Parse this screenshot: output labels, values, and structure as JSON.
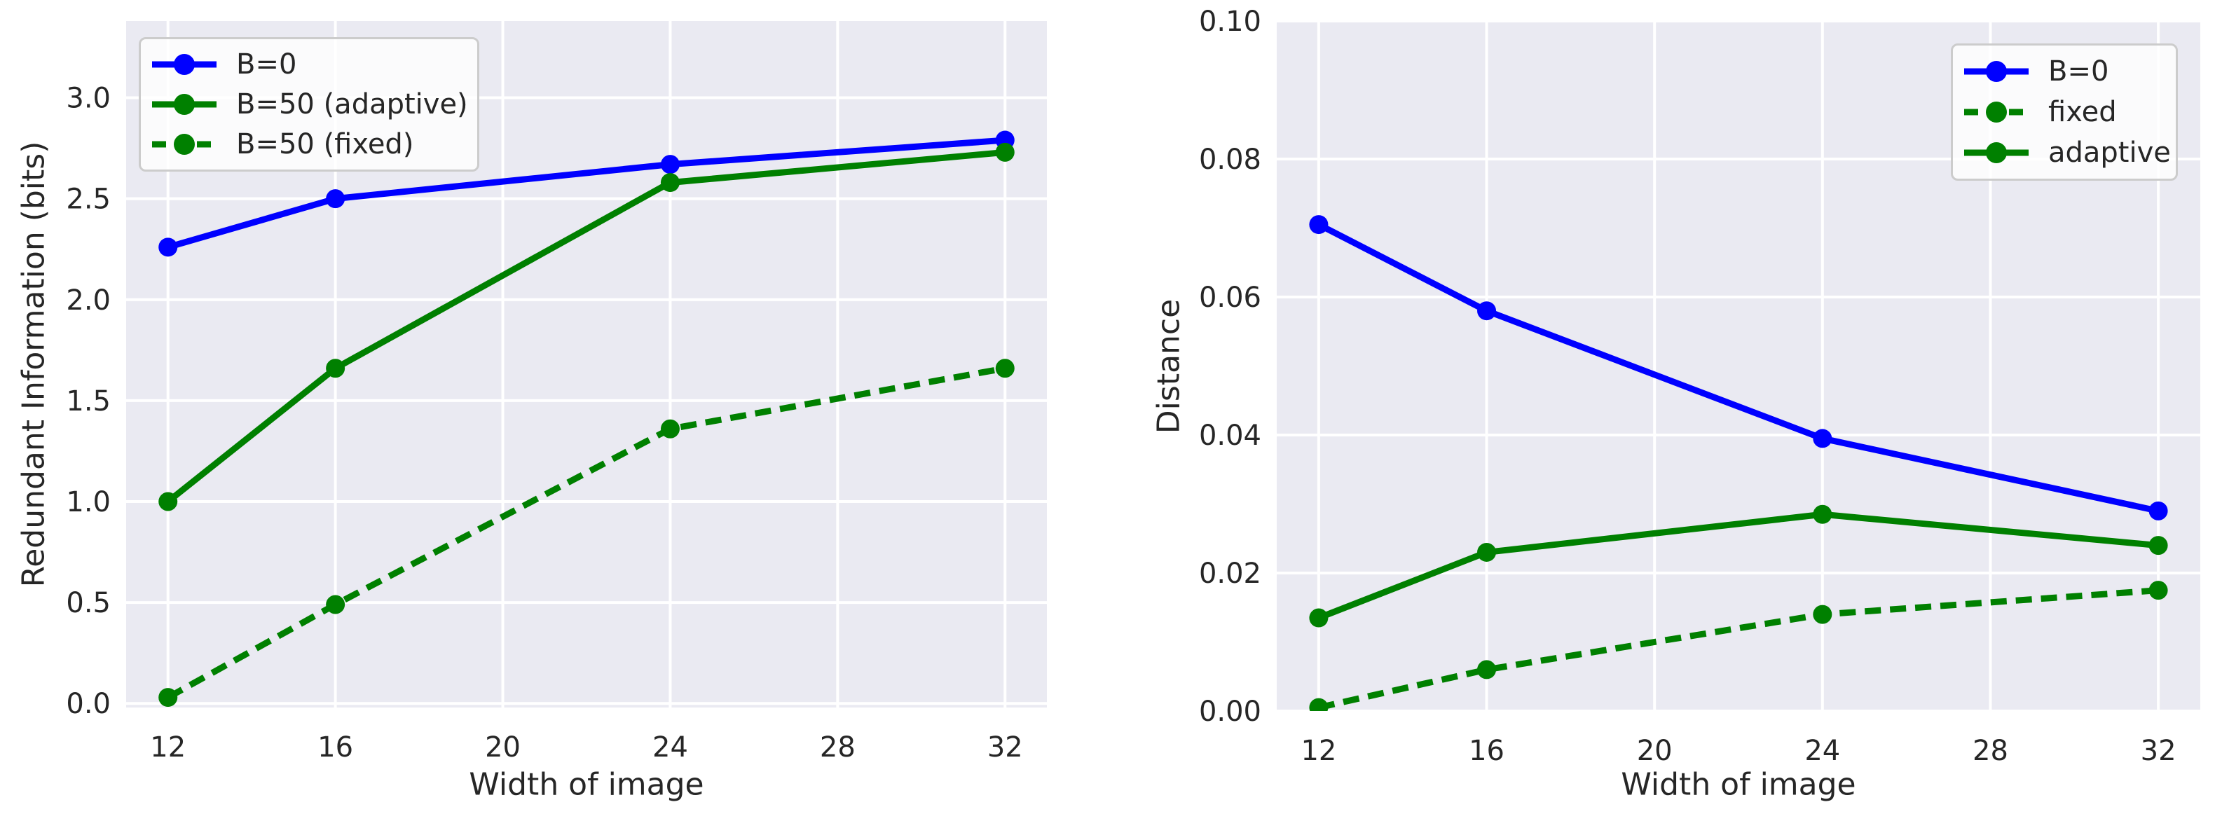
{
  "styles": {
    "plot_bg": "#eaeaf2",
    "grid_color": "#ffffff",
    "text_color": "#262626",
    "blue": "#0000ff",
    "green": "#008000",
    "legend_border": "#cccccc"
  },
  "chart_data": [
    {
      "type": "line",
      "xlabel": "Width of image",
      "ylabel": "Redundant Information (bits)",
      "x": [
        12,
        16,
        24,
        32
      ],
      "xticks": [
        12,
        16,
        20,
        24,
        28,
        32
      ],
      "xtick_labels": [
        "12",
        "16",
        "20",
        "24",
        "28",
        "32"
      ],
      "yticks": [
        0.0,
        0.5,
        1.0,
        1.5,
        2.0,
        2.5,
        3.0
      ],
      "ytick_labels": [
        "0.0",
        "0.5",
        "1.0",
        "1.5",
        "2.0",
        "2.5",
        "3.0"
      ],
      "xlim": [
        11,
        33
      ],
      "ylim": [
        -0.02,
        3.38
      ],
      "grid": true,
      "legend_position": "upper left",
      "series": [
        {
          "name": "B=0",
          "color": "#0000ff",
          "linestyle": "solid",
          "values": [
            2.26,
            2.5,
            2.67,
            2.79
          ]
        },
        {
          "name": "B=50 (adaptive)",
          "color": "#008000",
          "linestyle": "solid",
          "values": [
            1.0,
            1.66,
            2.58,
            2.73
          ]
        },
        {
          "name": "B=50 (fixed)",
          "color": "#008000",
          "linestyle": "dashed",
          "values": [
            0.03,
            0.49,
            1.36,
            1.66
          ]
        }
      ]
    },
    {
      "type": "line",
      "xlabel": "Width of image",
      "ylabel": "Distance",
      "x": [
        12,
        16,
        24,
        32
      ],
      "xticks": [
        12,
        16,
        20,
        24,
        28,
        32
      ],
      "xtick_labels": [
        "12",
        "16",
        "20",
        "24",
        "28",
        "32"
      ],
      "yticks": [
        0.0,
        0.02,
        0.04,
        0.06,
        0.08,
        0.1
      ],
      "ytick_labels": [
        "0.00",
        "0.02",
        "0.04",
        "0.06",
        "0.08",
        "0.10"
      ],
      "xlim": [
        11,
        33
      ],
      "ylim": [
        0.0,
        0.1
      ],
      "grid": true,
      "legend_position": "upper right",
      "series": [
        {
          "name": "B=0",
          "color": "#0000ff",
          "linestyle": "solid",
          "values": [
            0.0705,
            0.058,
            0.0395,
            0.029
          ]
        },
        {
          "name": "fixed",
          "color": "#008000",
          "linestyle": "dashed",
          "values": [
            0.0005,
            0.006,
            0.014,
            0.0175
          ]
        },
        {
          "name": "adaptive",
          "color": "#008000",
          "linestyle": "solid",
          "values": [
            0.0135,
            0.023,
            0.0285,
            0.024
          ]
        }
      ]
    }
  ]
}
